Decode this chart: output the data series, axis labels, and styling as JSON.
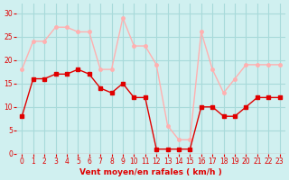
{
  "x": [
    0,
    1,
    2,
    3,
    4,
    5,
    6,
    7,
    8,
    9,
    10,
    11,
    12,
    13,
    14,
    15,
    16,
    17,
    18,
    19,
    20,
    21,
    22,
    23
  ],
  "wind_avg": [
    8,
    16,
    16,
    17,
    17,
    18,
    17,
    14,
    13,
    15,
    12,
    12,
    1,
    1,
    1,
    1,
    10,
    10,
    8,
    8,
    10,
    12,
    12,
    12
  ],
  "wind_gust": [
    18,
    24,
    24,
    27,
    27,
    26,
    26,
    18,
    18,
    29,
    23,
    23,
    19,
    6,
    3,
    3,
    26,
    18,
    13,
    16,
    19,
    19,
    19,
    19
  ],
  "avg_color": "#e00000",
  "gust_color": "#ffb0b0",
  "bg_color": "#d0f0f0",
  "grid_color": "#a8dada",
  "xlabel": "Vent moyen/en rafales ( km/h )",
  "xlabel_color": "#e00000",
  "tick_color": "#e00000",
  "ylim": [
    0,
    32
  ],
  "yticks": [
    0,
    5,
    10,
    15,
    20,
    25,
    30
  ],
  "xlim": [
    -0.5,
    23.5
  ]
}
